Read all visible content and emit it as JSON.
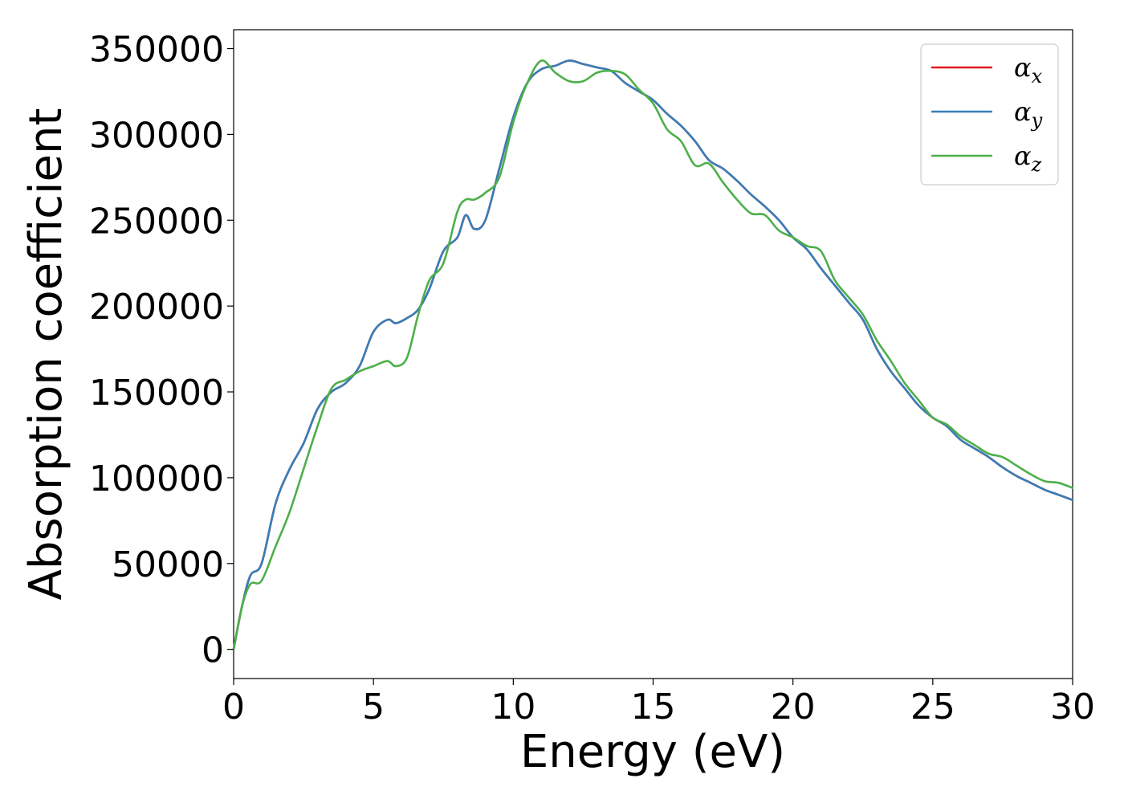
{
  "chart_data": {
    "type": "line",
    "xlabel": "Energy (eV)",
    "ylabel": "Absorption coefficient",
    "xlim": [
      0,
      30
    ],
    "ylim": [
      -17000,
      361000
    ],
    "xticks": [
      0,
      5,
      10,
      15,
      20,
      25,
      30
    ],
    "yticks": [
      0,
      50000,
      100000,
      150000,
      200000,
      250000,
      300000,
      350000
    ],
    "grid": false,
    "legend_position": "top-right",
    "legend": [
      {
        "symbol": "α",
        "sub": "x",
        "color": "#e41a1c"
      },
      {
        "symbol": "α",
        "sub": "y",
        "color": "#377eb8"
      },
      {
        "symbol": "α",
        "sub": "z",
        "color": "#4daf4a"
      }
    ],
    "series": [
      {
        "name": "αx",
        "color": "#e41a1c",
        "x": [
          0,
          0.3,
          0.6,
          1.0,
          1.5,
          2.0,
          2.5,
          3.0,
          3.5,
          4.0,
          4.5,
          5.0,
          5.5,
          5.8,
          6.2,
          6.6,
          7.0,
          7.5,
          8.0,
          8.3,
          8.6,
          9.0,
          9.5,
          10.0,
          10.5,
          11.0,
          11.5,
          12.0,
          12.5,
          13.0,
          13.5,
          14.0,
          14.5,
          15.0,
          15.5,
          16.0,
          16.5,
          17.0,
          17.5,
          18.0,
          18.5,
          19.0,
          19.5,
          20.0,
          20.5,
          21.0,
          21.5,
          22.0,
          22.5,
          23.0,
          23.5,
          24.0,
          24.5,
          25.0,
          25.5,
          26.0,
          26.5,
          27.0,
          27.5,
          28.0,
          28.5,
          29.0,
          29.5,
          30.0
        ],
        "y": [
          0,
          25000,
          43000,
          50000,
          85000,
          105000,
          120000,
          140000,
          150000,
          155000,
          165000,
          185000,
          192000,
          190000,
          193000,
          198000,
          210000,
          232000,
          240000,
          253000,
          245000,
          250000,
          280000,
          310000,
          330000,
          338000,
          340000,
          343000,
          341000,
          339000,
          337000,
          330000,
          325000,
          320000,
          312000,
          305000,
          296000,
          285000,
          280000,
          273000,
          265000,
          258000,
          250000,
          240000,
          233000,
          222000,
          212000,
          202000,
          192000,
          175000,
          162000,
          152000,
          142000,
          135000,
          130000,
          122000,
          117000,
          112000,
          106000,
          101000,
          97000,
          93000,
          90000,
          87000
        ]
      },
      {
        "name": "αy",
        "color": "#377eb8",
        "x": [
          0,
          0.3,
          0.6,
          1.0,
          1.5,
          2.0,
          2.5,
          3.0,
          3.5,
          4.0,
          4.5,
          5.0,
          5.5,
          5.8,
          6.2,
          6.6,
          7.0,
          7.5,
          8.0,
          8.3,
          8.6,
          9.0,
          9.5,
          10.0,
          10.5,
          11.0,
          11.5,
          12.0,
          12.5,
          13.0,
          13.5,
          14.0,
          14.5,
          15.0,
          15.5,
          16.0,
          16.5,
          17.0,
          17.5,
          18.0,
          18.5,
          19.0,
          19.5,
          20.0,
          20.5,
          21.0,
          21.5,
          22.0,
          22.5,
          23.0,
          23.5,
          24.0,
          24.5,
          25.0,
          25.5,
          26.0,
          26.5,
          27.0,
          27.5,
          28.0,
          28.5,
          29.0,
          29.5,
          30.0
        ],
        "y": [
          0,
          25000,
          43000,
          50000,
          85000,
          105000,
          120000,
          140000,
          150000,
          155000,
          165000,
          185000,
          192000,
          190000,
          193000,
          198000,
          210000,
          232000,
          240000,
          253000,
          245000,
          250000,
          280000,
          310000,
          330000,
          338000,
          340000,
          343000,
          341000,
          339000,
          337000,
          330000,
          325000,
          320000,
          312000,
          305000,
          296000,
          285000,
          280000,
          273000,
          265000,
          258000,
          250000,
          240000,
          233000,
          222000,
          212000,
          202000,
          192000,
          175000,
          162000,
          152000,
          142000,
          135000,
          130000,
          122000,
          117000,
          112000,
          106000,
          101000,
          97000,
          93000,
          90000,
          87000
        ]
      },
      {
        "name": "αz",
        "color": "#4daf4a",
        "x": [
          0,
          0.3,
          0.6,
          1.0,
          1.5,
          2.0,
          2.5,
          3.0,
          3.5,
          4.0,
          4.5,
          5.0,
          5.5,
          5.8,
          6.2,
          6.6,
          7.0,
          7.5,
          8.0,
          8.3,
          8.6,
          9.0,
          9.5,
          10.0,
          10.5,
          11.0,
          11.5,
          12.0,
          12.5,
          13.0,
          13.5,
          14.0,
          14.5,
          15.0,
          15.5,
          16.0,
          16.5,
          17.0,
          17.5,
          18.0,
          18.5,
          19.0,
          19.5,
          20.0,
          20.5,
          21.0,
          21.5,
          22.0,
          22.5,
          23.0,
          23.5,
          24.0,
          24.5,
          25.0,
          25.5,
          26.0,
          26.5,
          27.0,
          27.5,
          28.0,
          28.5,
          29.0,
          29.5,
          30.0
        ],
        "y": [
          0,
          25000,
          38000,
          40000,
          60000,
          80000,
          105000,
          130000,
          152000,
          157000,
          162000,
          165000,
          168000,
          165000,
          170000,
          195000,
          215000,
          225000,
          255000,
          262000,
          262000,
          266000,
          275000,
          307000,
          330000,
          343000,
          336000,
          331000,
          331000,
          336000,
          337000,
          335000,
          326000,
          318000,
          303000,
          296000,
          282000,
          283000,
          272000,
          262000,
          254000,
          253000,
          244000,
          240000,
          235000,
          232000,
          215000,
          205000,
          195000,
          180000,
          168000,
          155000,
          145000,
          135000,
          131000,
          124000,
          119000,
          114000,
          112000,
          107000,
          102000,
          98000,
          97000,
          94000
        ]
      }
    ]
  }
}
